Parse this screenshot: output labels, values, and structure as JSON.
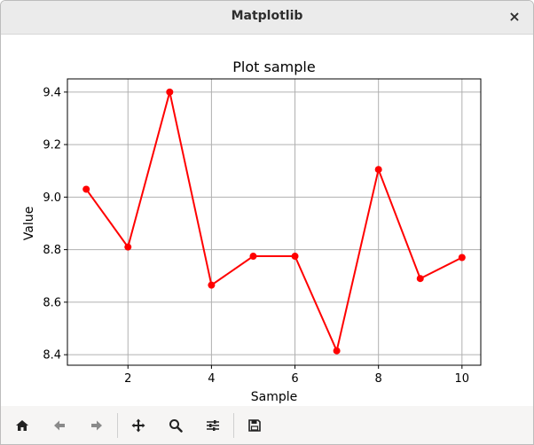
{
  "window": {
    "title": "Matplotlib",
    "close_glyph": "×"
  },
  "toolbar": {
    "buttons": [
      {
        "name": "home-icon"
      },
      {
        "name": "back-icon"
      },
      {
        "name": "forward-icon"
      },
      {
        "name": "pan-icon"
      },
      {
        "name": "zoom-icon"
      },
      {
        "name": "configure-subplots-icon"
      },
      {
        "name": "save-icon"
      }
    ]
  },
  "chart_data": {
    "type": "line",
    "title": "Plot sample",
    "xlabel": "Sample",
    "ylabel": "Value",
    "xlim": [
      0.55,
      10.45
    ],
    "ylim": [
      8.36,
      9.45
    ],
    "xticks": [
      2,
      4,
      6,
      8,
      10
    ],
    "xtick_labels": [
      "2",
      "4",
      "6",
      "8",
      "10"
    ],
    "yticks": [
      8.4,
      8.6,
      8.8,
      9.0,
      9.2,
      9.4
    ],
    "ytick_labels": [
      "8.4",
      "8.6",
      "8.8",
      "9.0",
      "9.2",
      "9.4"
    ],
    "grid": true,
    "series": [
      {
        "color": "#ff0000",
        "marker": "circle",
        "x": [
          1,
          2,
          3,
          4,
          5,
          6,
          7,
          8,
          9,
          10
        ],
        "y": [
          9.03,
          8.81,
          9.4,
          8.665,
          8.775,
          8.775,
          8.415,
          9.105,
          8.69,
          8.77
        ]
      }
    ]
  }
}
